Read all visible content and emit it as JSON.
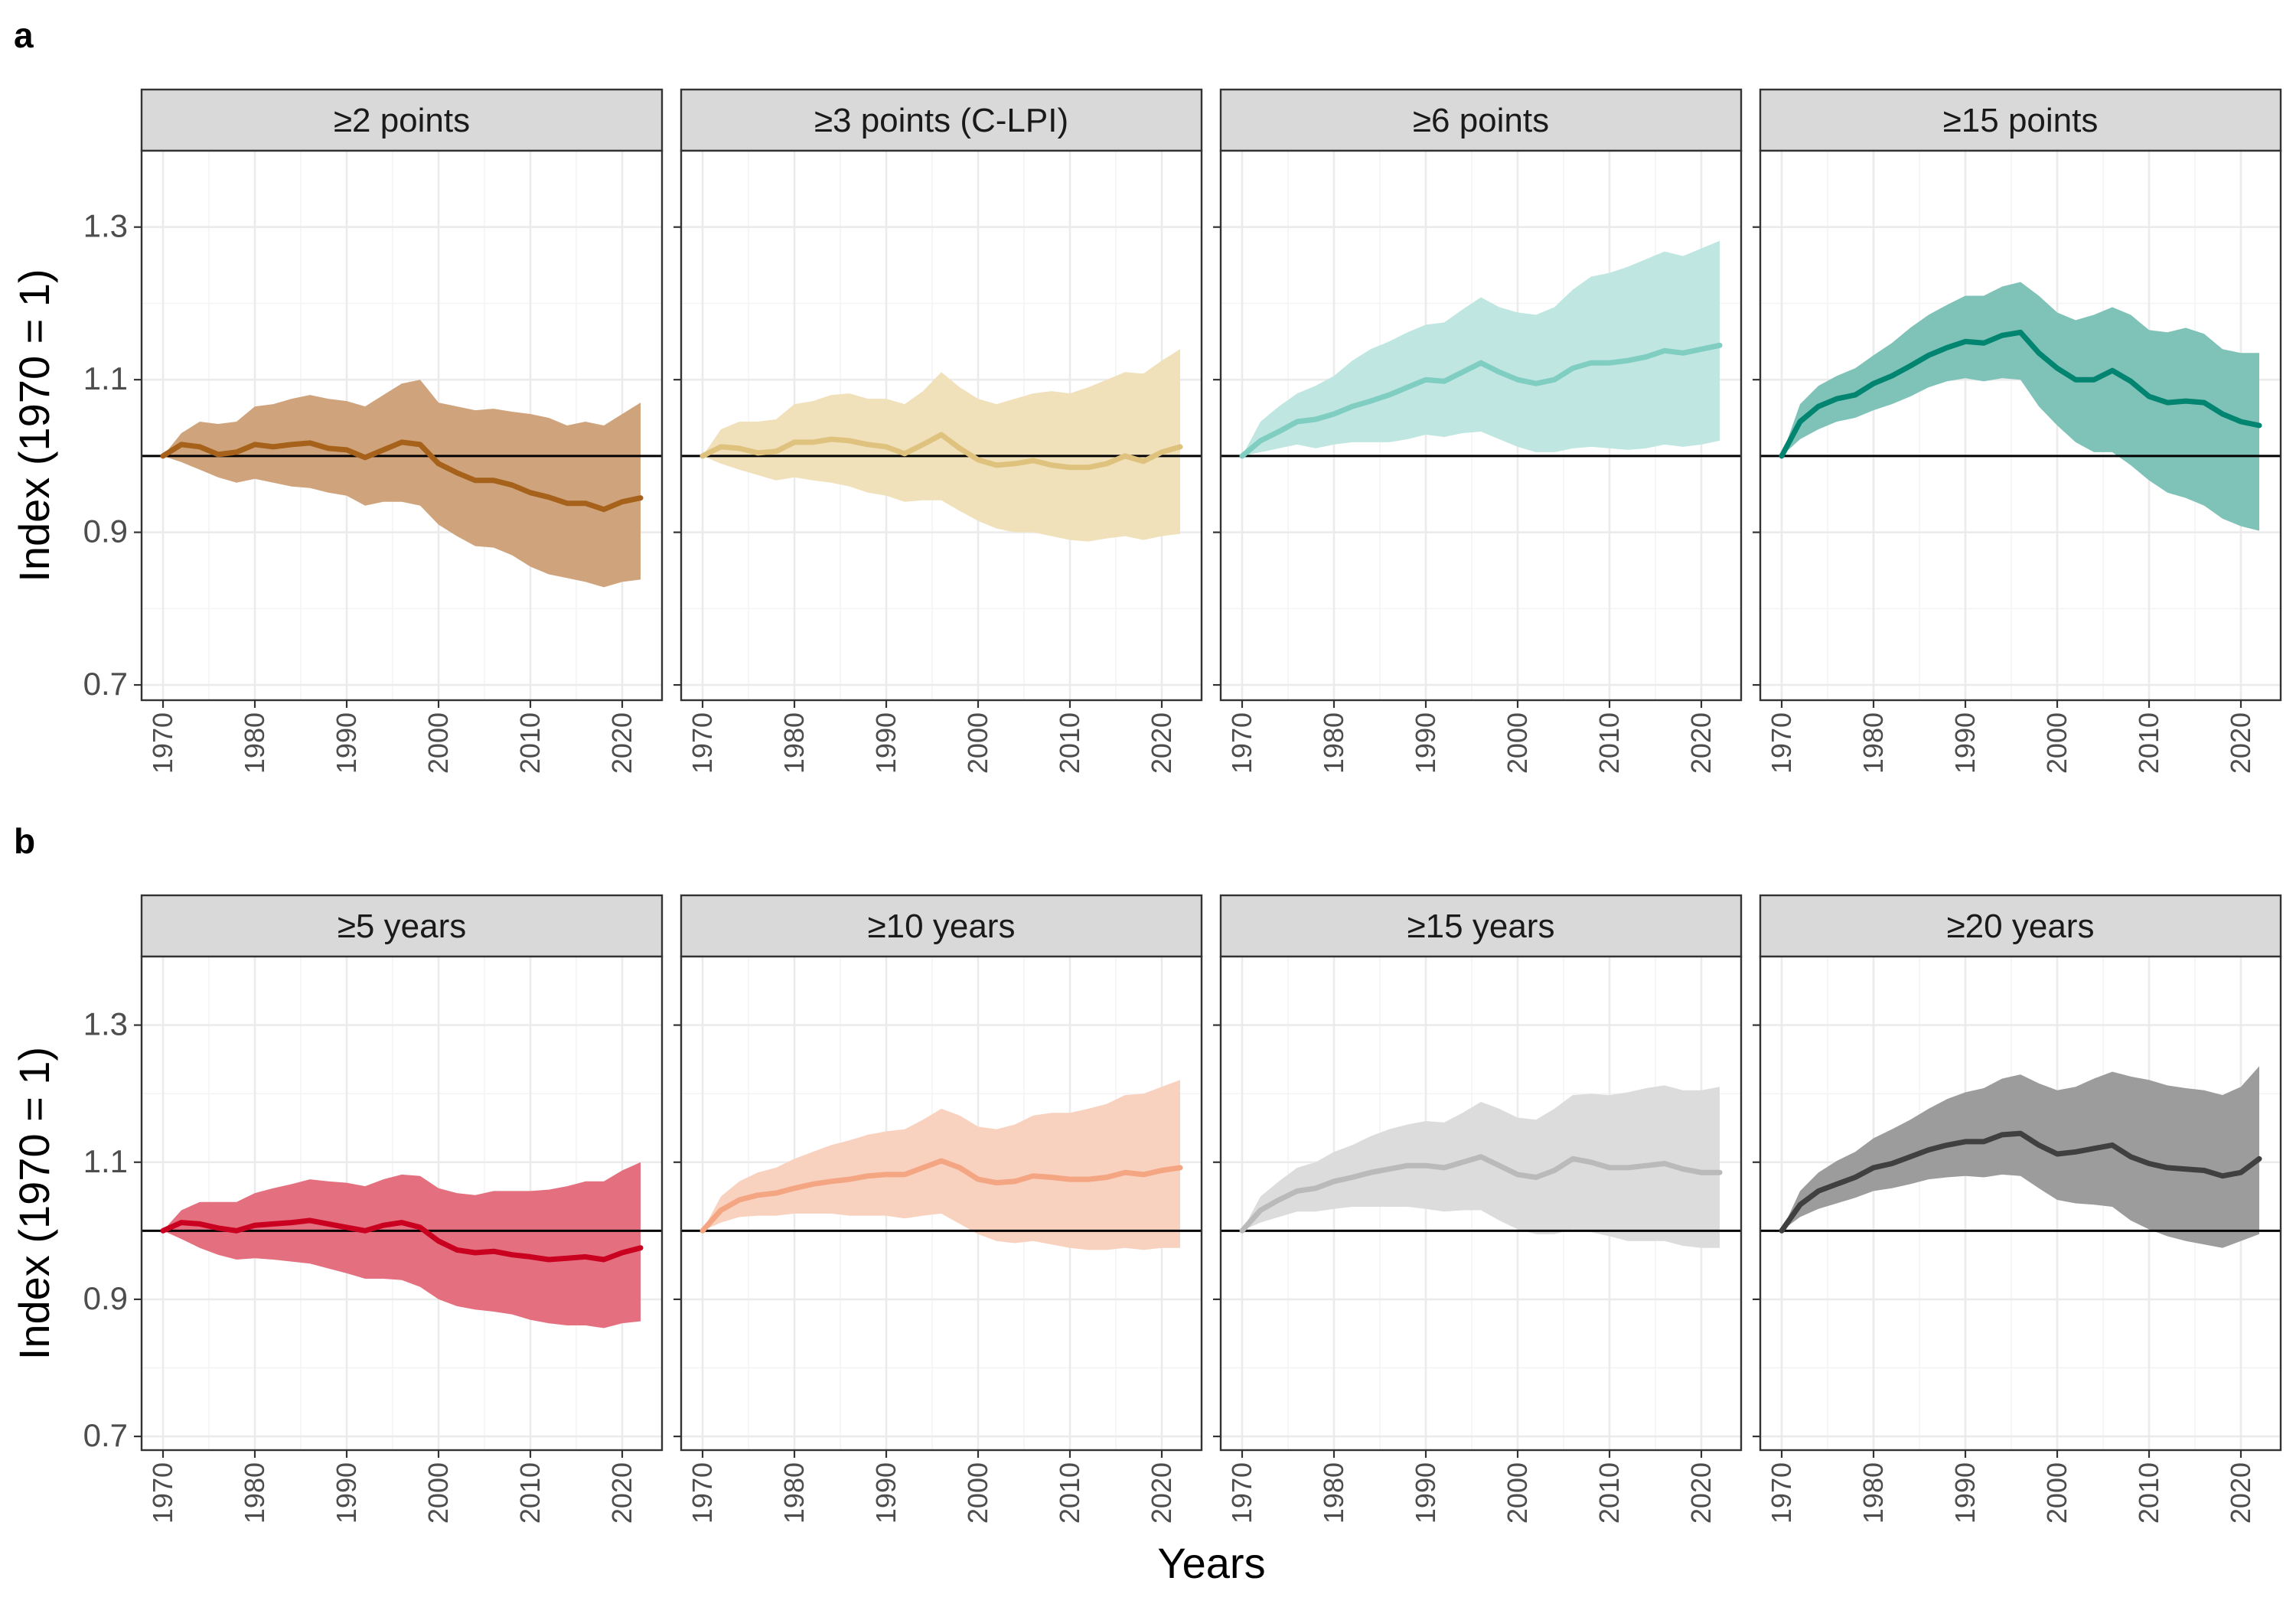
{
  "chart_data": {
    "type": "line",
    "xlabel": "Years",
    "ylabel": "Index (1970 = 1)",
    "xlim": [
      1970,
      2022
    ],
    "ylim": [
      0.68,
      1.4
    ],
    "y_ticks": [
      0.7,
      0.9,
      1.1,
      1.3
    ],
    "x_ticks": [
      1970,
      1980,
      1990,
      2000,
      2010,
      2020
    ],
    "reference_line": 1.0,
    "grid": true,
    "x": [
      1970,
      1972,
      1974,
      1976,
      1978,
      1980,
      1982,
      1984,
      1986,
      1988,
      1990,
      1992,
      1994,
      1996,
      1998,
      2000,
      2002,
      2004,
      2006,
      2008,
      2010,
      2012,
      2014,
      2016,
      2018,
      2020,
      2022
    ],
    "rows": [
      {
        "tag": "a",
        "panels": [
          {
            "strip": "≥2 points",
            "color": "#a6611a",
            "band_color": "#cfa47d",
            "mean": [
              1.0,
              1.015,
              1.012,
              1.002,
              1.005,
              1.015,
              1.012,
              1.015,
              1.017,
              1.01,
              1.008,
              0.998,
              1.008,
              1.018,
              1.015,
              0.99,
              0.978,
              0.968,
              0.968,
              0.962,
              0.952,
              0.946,
              0.938,
              0.938,
              0.93,
              0.94,
              0.945
            ],
            "lower": [
              1.0,
              0.992,
              0.982,
              0.972,
              0.965,
              0.97,
              0.965,
              0.96,
              0.958,
              0.952,
              0.948,
              0.935,
              0.94,
              0.94,
              0.935,
              0.91,
              0.895,
              0.882,
              0.88,
              0.87,
              0.855,
              0.845,
              0.84,
              0.835,
              0.828,
              0.835,
              0.838
            ],
            "upper": [
              1.0,
              1.03,
              1.045,
              1.042,
              1.045,
              1.065,
              1.068,
              1.075,
              1.08,
              1.075,
              1.072,
              1.065,
              1.08,
              1.095,
              1.1,
              1.07,
              1.065,
              1.06,
              1.062,
              1.058,
              1.055,
              1.05,
              1.04,
              1.045,
              1.04,
              1.055,
              1.07
            ]
          },
          {
            "strip": "≥3 points (C-LPI)",
            "color": "#dfc27d",
            "band_color": "#f0e1bb",
            "mean": [
              1.0,
              1.012,
              1.01,
              1.004,
              1.006,
              1.018,
              1.018,
              1.022,
              1.02,
              1.015,
              1.012,
              1.003,
              1.015,
              1.028,
              1.01,
              0.995,
              0.988,
              0.99,
              0.994,
              0.988,
              0.985,
              0.985,
              0.99,
              1.0,
              0.993,
              1.005,
              1.012
            ],
            "lower": [
              1.0,
              0.99,
              0.982,
              0.975,
              0.968,
              0.972,
              0.968,
              0.965,
              0.96,
              0.952,
              0.948,
              0.94,
              0.942,
              0.942,
              0.928,
              0.915,
              0.905,
              0.9,
              0.9,
              0.895,
              0.89,
              0.888,
              0.892,
              0.895,
              0.89,
              0.895,
              0.898
            ],
            "upper": [
              1.0,
              1.035,
              1.045,
              1.045,
              1.048,
              1.068,
              1.072,
              1.08,
              1.082,
              1.075,
              1.075,
              1.068,
              1.085,
              1.11,
              1.09,
              1.075,
              1.068,
              1.075,
              1.082,
              1.085,
              1.082,
              1.09,
              1.1,
              1.11,
              1.108,
              1.125,
              1.14
            ]
          },
          {
            "strip": "≥6 points",
            "color": "#80cdc1",
            "band_color": "#bfe6e0",
            "mean": [
              1.0,
              1.02,
              1.032,
              1.045,
              1.048,
              1.055,
              1.065,
              1.072,
              1.08,
              1.09,
              1.1,
              1.098,
              1.11,
              1.122,
              1.11,
              1.1,
              1.095,
              1.1,
              1.115,
              1.122,
              1.122,
              1.125,
              1.13,
              1.138,
              1.135,
              1.14,
              1.145
            ],
            "lower": [
              1.0,
              1.005,
              1.01,
              1.015,
              1.01,
              1.015,
              1.018,
              1.018,
              1.018,
              1.022,
              1.028,
              1.025,
              1.03,
              1.032,
              1.022,
              1.012,
              1.005,
              1.005,
              1.01,
              1.012,
              1.01,
              1.008,
              1.01,
              1.015,
              1.012,
              1.015,
              1.02
            ],
            "upper": [
              1.0,
              1.045,
              1.065,
              1.082,
              1.092,
              1.105,
              1.125,
              1.14,
              1.15,
              1.162,
              1.172,
              1.175,
              1.192,
              1.208,
              1.195,
              1.188,
              1.185,
              1.195,
              1.218,
              1.235,
              1.24,
              1.248,
              1.258,
              1.268,
              1.262,
              1.272,
              1.282
            ]
          },
          {
            "strip": "≥15 points",
            "color": "#018571",
            "band_color": "#7fc2b8",
            "mean": [
              1.0,
              1.045,
              1.065,
              1.075,
              1.08,
              1.095,
              1.105,
              1.118,
              1.132,
              1.142,
              1.15,
              1.148,
              1.158,
              1.162,
              1.135,
              1.115,
              1.1,
              1.1,
              1.112,
              1.098,
              1.078,
              1.07,
              1.072,
              1.07,
              1.055,
              1.045,
              1.04
            ],
            "lower": [
              1.0,
              1.022,
              1.035,
              1.045,
              1.05,
              1.06,
              1.068,
              1.078,
              1.09,
              1.098,
              1.102,
              1.098,
              1.102,
              1.1,
              1.065,
              1.04,
              1.018,
              1.005,
              1.005,
              0.988,
              0.968,
              0.952,
              0.945,
              0.935,
              0.918,
              0.908,
              0.902
            ],
            "upper": [
              1.0,
              1.068,
              1.092,
              1.105,
              1.115,
              1.132,
              1.148,
              1.168,
              1.185,
              1.198,
              1.21,
              1.21,
              1.222,
              1.228,
              1.21,
              1.188,
              1.178,
              1.185,
              1.195,
              1.185,
              1.165,
              1.162,
              1.168,
              1.16,
              1.14,
              1.135,
              1.135
            ]
          }
        ]
      },
      {
        "tag": "b",
        "panels": [
          {
            "strip": "≥5 years",
            "color": "#ca0020",
            "band_color": "#e4707f",
            "mean": [
              1.0,
              1.012,
              1.01,
              1.004,
              1.0,
              1.008,
              1.01,
              1.012,
              1.015,
              1.01,
              1.005,
              1.0,
              1.008,
              1.012,
              1.005,
              0.985,
              0.972,
              0.968,
              0.97,
              0.965,
              0.962,
              0.958,
              0.96,
              0.962,
              0.958,
              0.968,
              0.975
            ],
            "lower": [
              1.0,
              0.988,
              0.975,
              0.965,
              0.958,
              0.96,
              0.958,
              0.955,
              0.952,
              0.945,
              0.938,
              0.93,
              0.93,
              0.928,
              0.918,
              0.9,
              0.89,
              0.885,
              0.882,
              0.878,
              0.87,
              0.865,
              0.862,
              0.862,
              0.858,
              0.865,
              0.868
            ],
            "upper": [
              1.0,
              1.03,
              1.042,
              1.042,
              1.042,
              1.055,
              1.062,
              1.068,
              1.075,
              1.072,
              1.07,
              1.065,
              1.075,
              1.082,
              1.08,
              1.062,
              1.055,
              1.052,
              1.058,
              1.058,
              1.058,
              1.06,
              1.065,
              1.072,
              1.072,
              1.088,
              1.1
            ]
          },
          {
            "strip": "≥10 years",
            "color": "#f4a582",
            "band_color": "#f9d1bf",
            "mean": [
              1.0,
              1.03,
              1.045,
              1.052,
              1.055,
              1.062,
              1.068,
              1.072,
              1.075,
              1.08,
              1.082,
              1.082,
              1.092,
              1.102,
              1.092,
              1.075,
              1.07,
              1.072,
              1.08,
              1.078,
              1.075,
              1.075,
              1.078,
              1.085,
              1.082,
              1.088,
              1.092
            ],
            "lower": [
              1.0,
              1.012,
              1.02,
              1.022,
              1.022,
              1.025,
              1.025,
              1.025,
              1.022,
              1.022,
              1.022,
              1.018,
              1.022,
              1.025,
              1.01,
              0.995,
              0.985,
              0.982,
              0.985,
              0.98,
              0.975,
              0.972,
              0.972,
              0.975,
              0.972,
              0.975,
              0.975
            ],
            "upper": [
              1.0,
              1.05,
              1.072,
              1.085,
              1.092,
              1.105,
              1.115,
              1.125,
              1.132,
              1.14,
              1.145,
              1.148,
              1.162,
              1.178,
              1.168,
              1.152,
              1.148,
              1.155,
              1.168,
              1.172,
              1.172,
              1.178,
              1.185,
              1.198,
              1.2,
              1.21,
              1.22
            ]
          },
          {
            "strip": "≥15 years",
            "color": "#bababa",
            "band_color": "#dcdcdc",
            "mean": [
              1.0,
              1.03,
              1.045,
              1.058,
              1.062,
              1.072,
              1.078,
              1.085,
              1.09,
              1.095,
              1.095,
              1.092,
              1.1,
              1.108,
              1.095,
              1.082,
              1.078,
              1.088,
              1.105,
              1.1,
              1.092,
              1.092,
              1.095,
              1.098,
              1.09,
              1.085,
              1.085
            ],
            "lower": [
              1.0,
              1.012,
              1.02,
              1.028,
              1.028,
              1.032,
              1.035,
              1.035,
              1.035,
              1.035,
              1.032,
              1.028,
              1.03,
              1.03,
              1.015,
              1.002,
              0.995,
              0.995,
              1.002,
              0.998,
              0.992,
              0.985,
              0.985,
              0.985,
              0.978,
              0.975,
              0.975
            ],
            "upper": [
              1.0,
              1.05,
              1.072,
              1.092,
              1.1,
              1.115,
              1.125,
              1.138,
              1.148,
              1.155,
              1.16,
              1.158,
              1.172,
              1.188,
              1.178,
              1.165,
              1.162,
              1.178,
              1.198,
              1.2,
              1.198,
              1.202,
              1.208,
              1.212,
              1.205,
              1.205,
              1.21
            ]
          },
          {
            "strip": "≥20 years",
            "color": "#404040",
            "band_color": "#9c9c9c",
            "mean": [
              1.0,
              1.038,
              1.058,
              1.068,
              1.078,
              1.092,
              1.098,
              1.108,
              1.118,
              1.125,
              1.13,
              1.13,
              1.14,
              1.142,
              1.125,
              1.112,
              1.115,
              1.12,
              1.125,
              1.108,
              1.098,
              1.092,
              1.09,
              1.088,
              1.08,
              1.085,
              1.105
            ],
            "lower": [
              1.0,
              1.02,
              1.032,
              1.04,
              1.048,
              1.058,
              1.062,
              1.068,
              1.075,
              1.078,
              1.08,
              1.078,
              1.082,
              1.08,
              1.062,
              1.045,
              1.04,
              1.038,
              1.035,
              1.015,
              1.002,
              0.992,
              0.985,
              0.98,
              0.975,
              0.985,
              0.995
            ],
            "upper": [
              1.0,
              1.058,
              1.085,
              1.102,
              1.115,
              1.135,
              1.148,
              1.162,
              1.178,
              1.192,
              1.202,
              1.208,
              1.222,
              1.228,
              1.215,
              1.205,
              1.21,
              1.222,
              1.232,
              1.225,
              1.22,
              1.212,
              1.208,
              1.205,
              1.198,
              1.21,
              1.24
            ]
          }
        ]
      }
    ]
  }
}
